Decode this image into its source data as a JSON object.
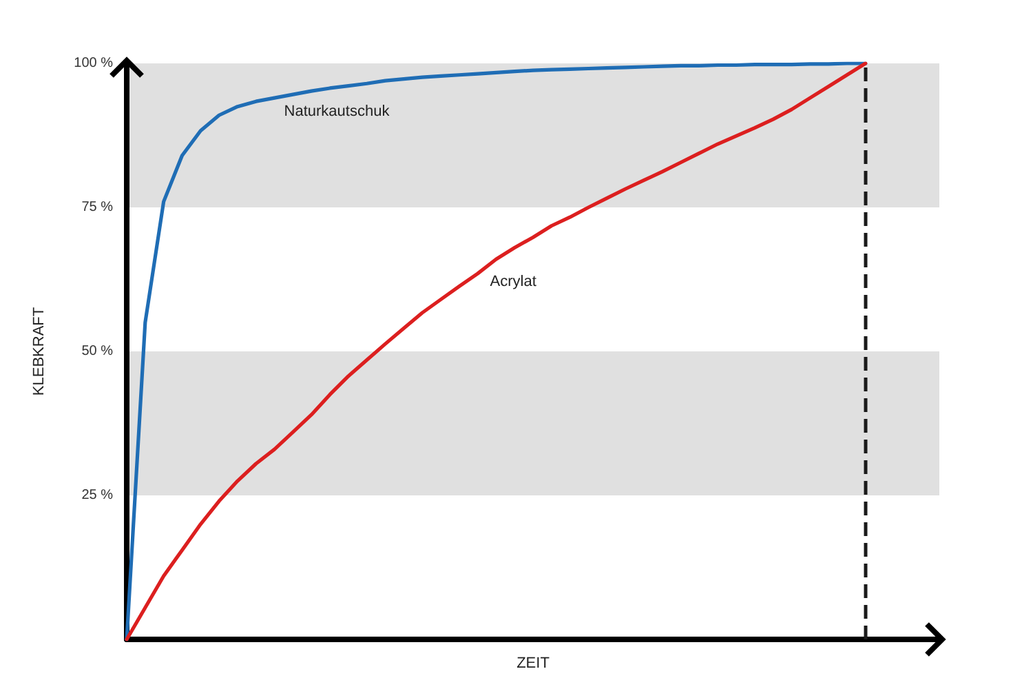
{
  "chart_data": {
    "type": "line",
    "xlabel": "ZEIT",
    "ylabel": "KLEBKRAFT",
    "categories": [
      null,
      null,
      null,
      null,
      null,
      null,
      null,
      null,
      null,
      null,
      null,
      null,
      null,
      null,
      null,
      null,
      null,
      null,
      null,
      null,
      null,
      null,
      null,
      null,
      null,
      null,
      null,
      null,
      null,
      null,
      null,
      null,
      null,
      null,
      null,
      null,
      null,
      null,
      null,
      null,
      null,
      null,
      null,
      null,
      null
    ],
    "ylim": [
      0,
      100
    ],
    "yticks": [
      {
        "value": 0,
        "label": null
      },
      {
        "value": 25,
        "label": "25 %"
      },
      {
        "value": 50,
        "label": "50 %"
      },
      {
        "value": 75,
        "label": "75 %"
      },
      {
        "value": 100,
        "label": "100 %"
      }
    ],
    "tick_labels": "y",
    "grid": false,
    "legend": false,
    "marker": "none",
    "line_style": "solid",
    "series": [
      {
        "name": "Naturkautschuk",
        "color": "#1f6db5",
        "values": [
          0,
          55,
          76,
          84,
          88.3,
          91,
          92.5,
          93.4,
          94,
          94.6,
          95.2,
          95.7,
          96.1,
          96.5,
          97,
          97.3,
          97.6,
          97.8,
          98,
          98.2,
          98.4,
          98.6,
          98.8,
          98.9,
          99,
          99.1,
          99.2,
          99.3,
          99.4,
          99.5,
          99.6,
          99.6,
          99.7,
          99.7,
          99.8,
          99.8,
          99.8,
          99.9,
          99.9,
          100,
          100,
          null,
          null,
          null,
          null
        ]
      },
      {
        "name": "Acrylat",
        "color": "#dc1f1f",
        "values": [
          0,
          5.5,
          11,
          15.5,
          20,
          24,
          27.5,
          30.5,
          33,
          36,
          39,
          42.5,
          45.7,
          48.5,
          51.3,
          54,
          56.7,
          59,
          61.3,
          63.5,
          66,
          68,
          69.8,
          71.8,
          73.3,
          75,
          76.6,
          78.2,
          79.7,
          81.2,
          82.8,
          84.4,
          86,
          87.4,
          88.8,
          90.3,
          92,
          94,
          96,
          98,
          100,
          null,
          null,
          null,
          null
        ]
      }
    ],
    "bands": [
      {
        "axis": "y",
        "from": 25,
        "to": 50,
        "color": "#e0e0e0"
      },
      {
        "axis": "y",
        "from": 75,
        "to": 100,
        "color": "#e0e0e0"
      }
    ],
    "ref_lines": [
      {
        "axis": "x",
        "color": "#1a1a1a",
        "line_style": "dashed"
      }
    ]
  }
}
